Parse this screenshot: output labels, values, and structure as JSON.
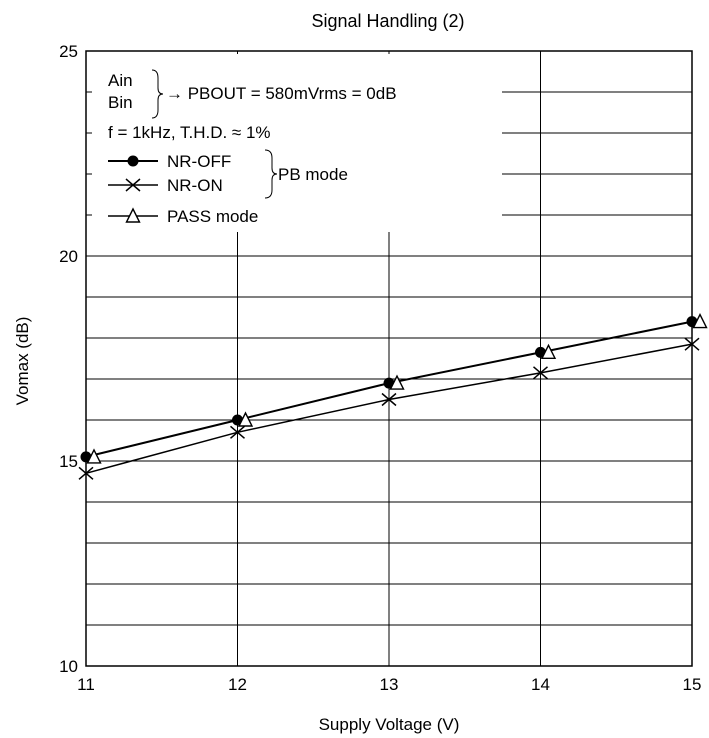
{
  "chart_data": {
    "type": "line",
    "title": "Signal Handling (2)",
    "xlabel": "Supply Voltage  (V)",
    "ylabel": "Vomax  (dB)",
    "xlim": [
      11,
      15
    ],
    "ylim": [
      10,
      25
    ],
    "x_ticks": [
      "11",
      "12",
      "13",
      "14",
      "15"
    ],
    "y_ticks": [
      "10",
      "15",
      "20",
      "25"
    ],
    "grid": true,
    "x": [
      11,
      12,
      13,
      14,
      15
    ],
    "series": [
      {
        "name": "NR-OFF",
        "marker": "filled-circle",
        "values": [
          15.1,
          16.0,
          16.9,
          17.65,
          18.4
        ]
      },
      {
        "name": "NR-ON",
        "marker": "cross",
        "values": [
          14.7,
          15.7,
          16.5,
          17.15,
          17.85
        ]
      },
      {
        "name": "PASS mode",
        "marker": "open-triangle",
        "values": [
          15.1,
          16.0,
          16.9,
          17.65,
          18.4
        ]
      }
    ],
    "annotation": {
      "input_a": "Ain",
      "input_b": "Bin",
      "pbout": "→ PBOUT = 580mVrms = 0dB",
      "conditions": "f = 1kHz, T.H.D. ≈ 1%",
      "group_label": "PB mode"
    }
  }
}
